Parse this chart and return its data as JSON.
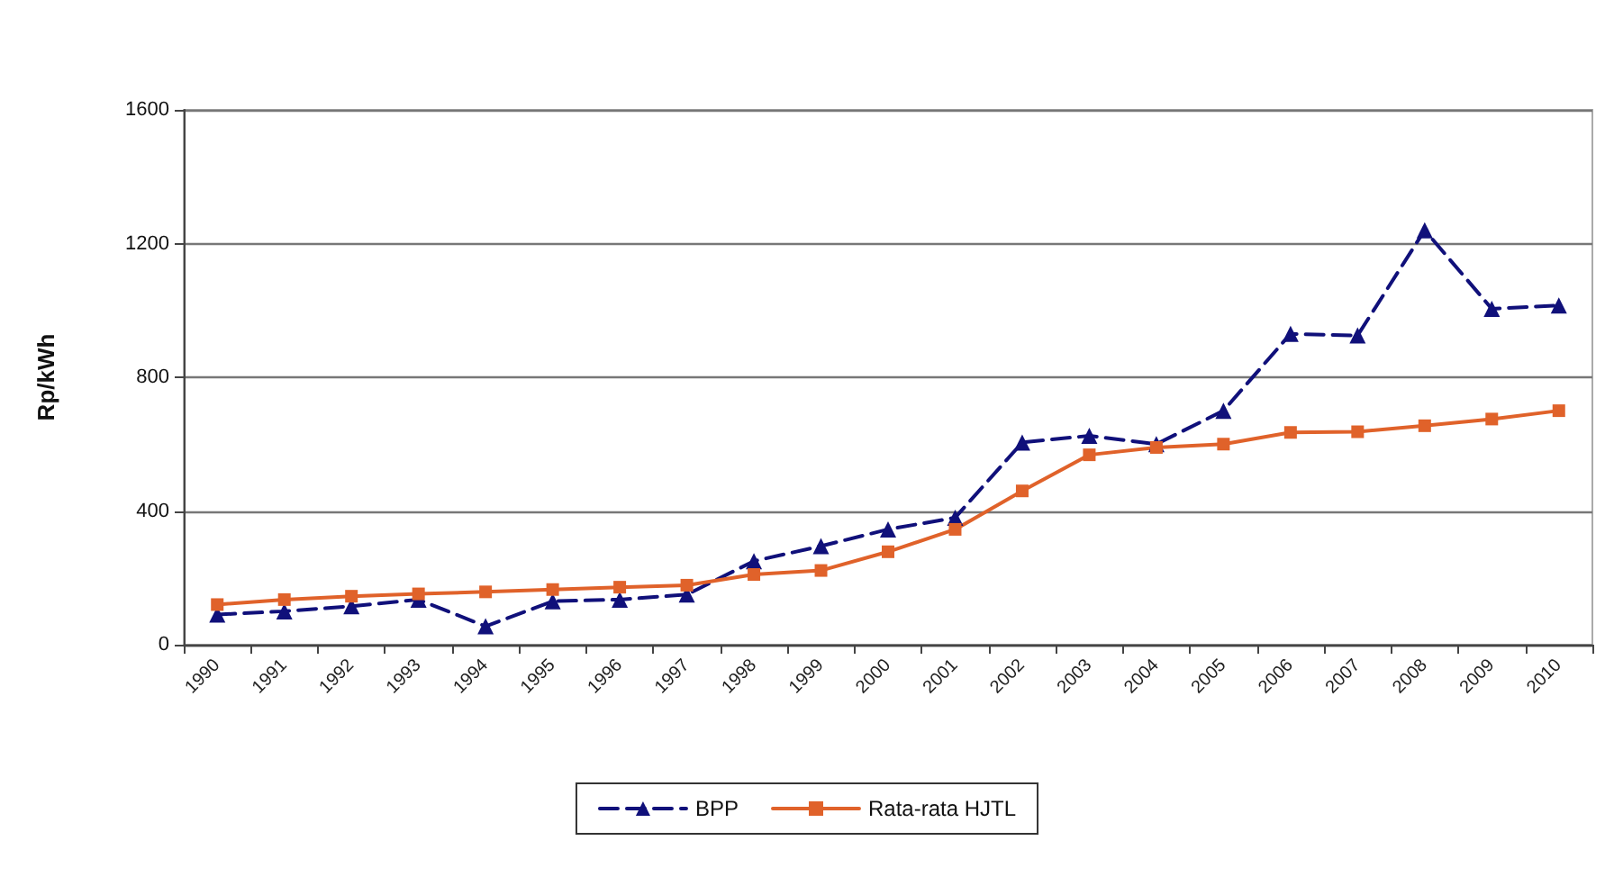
{
  "chart_data": {
    "type": "line",
    "ylabel": "Rp/kWh",
    "categories": [
      "1990",
      "1991",
      "1992",
      "1993",
      "1994",
      "1995",
      "1996",
      "1997",
      "1998",
      "1999",
      "2000",
      "2001",
      "2002",
      "2003",
      "2004",
      "2005",
      "2006",
      "2007",
      "2008",
      "2009",
      "2010"
    ],
    "series": [
      {
        "name": "BPP",
        "color": "#10107a",
        "marker": "triangle",
        "line_style": "dashed",
        "values": [
          90,
          100,
          115,
          135,
          55,
          130,
          135,
          150,
          250,
          295,
          345,
          380,
          605,
          625,
          600,
          700,
          930,
          925,
          1240,
          1005,
          1015
        ]
      },
      {
        "name": "Rata-rata HJTL",
        "color": "#e0622a",
        "marker": "square",
        "line_style": "solid",
        "values": [
          120,
          135,
          145,
          152,
          158,
          165,
          172,
          178,
          210,
          222,
          278,
          345,
          460,
          568,
          590,
          600,
          635,
          637,
          655,
          675,
          700
        ]
      }
    ],
    "ylim": [
      0,
      1600
    ],
    "yticks": [
      0,
      400,
      800,
      1200,
      1600
    ],
    "grid": "y",
    "legend": "bottom"
  }
}
